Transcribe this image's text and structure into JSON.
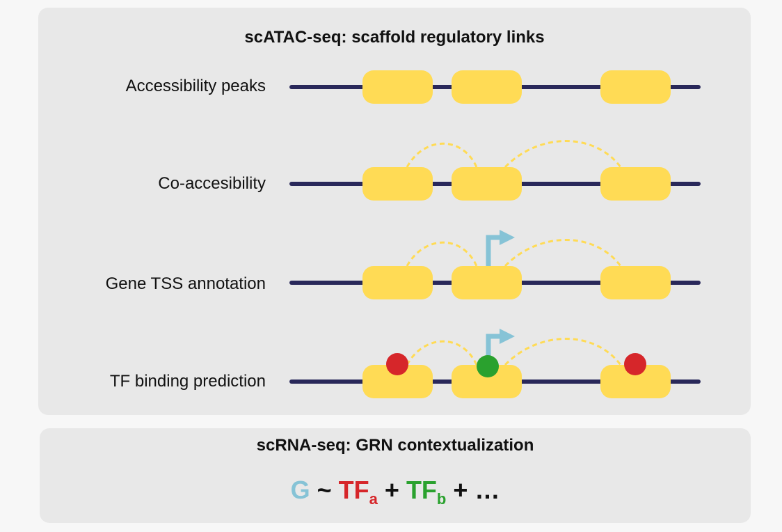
{
  "atac_panel": {
    "title": "scATAC-seq: scaffold regulatory links",
    "rows": [
      {
        "label": "Accessibility peaks"
      },
      {
        "label": "Co-accesibility"
      },
      {
        "label": "Gene TSS annotation"
      },
      {
        "label": "TF binding prediction"
      }
    ]
  },
  "rna_panel": {
    "title": "scRNA-seq: GRN contextualization",
    "equation": {
      "gene": "G",
      "tilde": "~",
      "tf_a": "TF",
      "tf_a_sub": "a",
      "plus1": "+",
      "tf_b": "TF",
      "tf_b_sub": "b",
      "plus2": "+",
      "ellipsis": "…"
    }
  },
  "colors": {
    "panel_bg": "#e8e8e8",
    "dna_line": "#29285a",
    "peak": "#ffdb55",
    "link": "#ffdb55",
    "tss_arrow": "#86c3d6",
    "tf_a": "#d6262a",
    "tf_b": "#2aa12e"
  }
}
